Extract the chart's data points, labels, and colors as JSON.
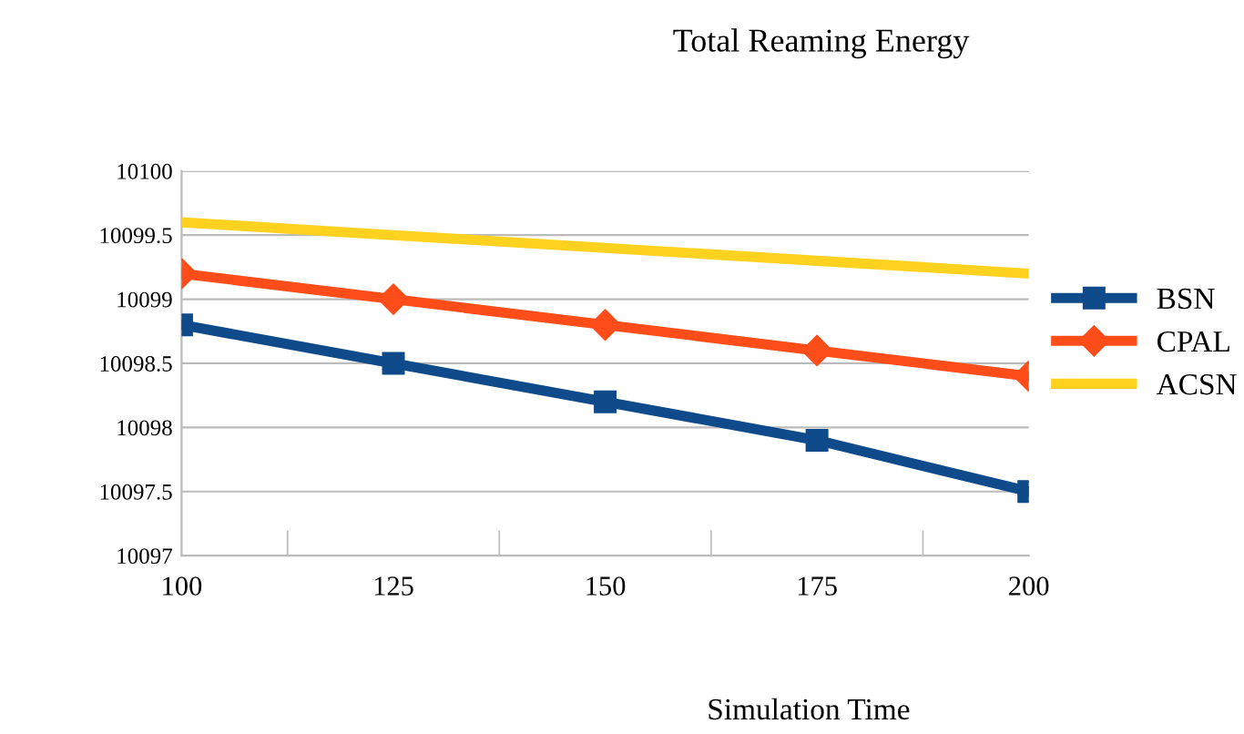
{
  "chart_data": {
    "type": "line",
    "title": "Total Reaming Energy",
    "xlabel": "Simulation Time",
    "categories": [
      "100",
      "125",
      "150",
      "175",
      "200"
    ],
    "series": [
      {
        "name": "BSN",
        "color": "#0f4a8a",
        "values": [
          10098.8,
          10098.5,
          10098.2,
          10097.9,
          10097.5
        ],
        "marker": "square"
      },
      {
        "name": "CPAL",
        "color": "#ff4d1a",
        "values": [
          10099.2,
          10099.0,
          10098.8,
          10098.6,
          10098.4
        ],
        "marker": "diamond"
      },
      {
        "name": "ACSN",
        "color": "#ffd21f",
        "values": [
          10099.6,
          10099.5,
          10099.4,
          10099.3,
          10099.2
        ],
        "marker": "none"
      }
    ],
    "ylim": [
      10097,
      10100
    ],
    "yticks": [
      10097,
      10097.5,
      10098,
      10098.5,
      10099,
      10099.5,
      10100
    ],
    "grid": "y",
    "legend": "right",
    "line_style": "solid"
  }
}
